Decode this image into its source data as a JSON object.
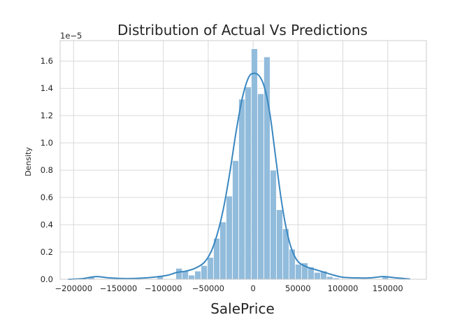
{
  "chart_data": {
    "type": "bar",
    "title": "Distribution of Actual Vs Predictions",
    "xlabel": "SalePrice",
    "ylabel": "Density",
    "y_offset_label": "1e−5",
    "xlim": [
      -215000,
      193000
    ],
    "ylim": [
      0,
      1.75
    ],
    "x_ticks": [
      -200000,
      -150000,
      -100000,
      -50000,
      0,
      50000,
      100000,
      150000
    ],
    "x_tick_labels": [
      "−200000",
      "−150000",
      "−100000",
      "−50000",
      "0",
      "50000",
      "100000",
      "150000"
    ],
    "y_ticks": [
      0,
      0.2,
      0.4,
      0.6,
      0.8,
      1.0,
      1.2,
      1.4,
      1.6
    ],
    "y_tick_labels": [
      "0.0",
      "0.2",
      "0.4",
      "0.6",
      "0.8",
      "1.0",
      "1.2",
      "1.4",
      "1.6"
    ],
    "grid": true,
    "colors": {
      "bar": "#92bcdc",
      "kde": "#3a87c0",
      "grid": "#d9d9d9"
    },
    "histogram": {
      "bin_width": 6900,
      "bins": [
        {
          "x0": -183500,
          "density": 0.02
        },
        {
          "x0": -107000,
          "density": 0.02
        },
        {
          "x0": -86000,
          "density": 0.08
        },
        {
          "x0": -79000,
          "density": 0.06
        },
        {
          "x0": -72000,
          "density": 0.03
        },
        {
          "x0": -65000,
          "density": 0.06
        },
        {
          "x0": -58000,
          "density": 0.1
        },
        {
          "x0": -51000,
          "density": 0.16
        },
        {
          "x0": -44000,
          "density": 0.3
        },
        {
          "x0": -37000,
          "density": 0.42
        },
        {
          "x0": -30000,
          "density": 0.61
        },
        {
          "x0": -23000,
          "density": 0.87
        },
        {
          "x0": -16000,
          "density": 1.32
        },
        {
          "x0": -9000,
          "density": 1.41
        },
        {
          "x0": -2000,
          "density": 1.69
        },
        {
          "x0": 5000,
          "density": 1.36
        },
        {
          "x0": 12000,
          "density": 1.63
        },
        {
          "x0": 19000,
          "density": 0.8
        },
        {
          "x0": 26000,
          "density": 0.51
        },
        {
          "x0": 33000,
          "density": 0.37
        },
        {
          "x0": 40000,
          "density": 0.22
        },
        {
          "x0": 47000,
          "density": 0.11
        },
        {
          "x0": 54000,
          "density": 0.12
        },
        {
          "x0": 61000,
          "density": 0.09
        },
        {
          "x0": 68000,
          "density": 0.05
        },
        {
          "x0": 75000,
          "density": 0.06
        },
        {
          "x0": 82000,
          "density": 0.02
        },
        {
          "x0": 89000,
          "density": 0.01
        },
        {
          "x0": 144000,
          "density": 0.02
        }
      ]
    },
    "kde": [
      {
        "x": -206000,
        "y": 0.0
      },
      {
        "x": -190000,
        "y": 0.005
      },
      {
        "x": -175000,
        "y": 0.02
      },
      {
        "x": -160000,
        "y": 0.01
      },
      {
        "x": -140000,
        "y": 0.005
      },
      {
        "x": -120000,
        "y": 0.01
      },
      {
        "x": -105000,
        "y": 0.02
      },
      {
        "x": -95000,
        "y": 0.03
      },
      {
        "x": -85000,
        "y": 0.05
      },
      {
        "x": -75000,
        "y": 0.06
      },
      {
        "x": -65000,
        "y": 0.08
      },
      {
        "x": -55000,
        "y": 0.12
      },
      {
        "x": -47000,
        "y": 0.2
      },
      {
        "x": -40000,
        "y": 0.33
      },
      {
        "x": -33000,
        "y": 0.52
      },
      {
        "x": -26000,
        "y": 0.78
      },
      {
        "x": -19000,
        "y": 1.08
      },
      {
        "x": -12000,
        "y": 1.33
      },
      {
        "x": -5000,
        "y": 1.48
      },
      {
        "x": 1000,
        "y": 1.51
      },
      {
        "x": 7000,
        "y": 1.49
      },
      {
        "x": 13000,
        "y": 1.4
      },
      {
        "x": 19000,
        "y": 1.2
      },
      {
        "x": 25000,
        "y": 0.9
      },
      {
        "x": 31000,
        "y": 0.6
      },
      {
        "x": 37000,
        "y": 0.37
      },
      {
        "x": 43000,
        "y": 0.22
      },
      {
        "x": 50000,
        "y": 0.13
      },
      {
        "x": 60000,
        "y": 0.09
      },
      {
        "x": 70000,
        "y": 0.07
      },
      {
        "x": 80000,
        "y": 0.05
      },
      {
        "x": 90000,
        "y": 0.03
      },
      {
        "x": 100000,
        "y": 0.015
      },
      {
        "x": 115000,
        "y": 0.01
      },
      {
        "x": 130000,
        "y": 0.01
      },
      {
        "x": 145000,
        "y": 0.02
      },
      {
        "x": 160000,
        "y": 0.01
      },
      {
        "x": 175000,
        "y": 0.002
      }
    ]
  }
}
